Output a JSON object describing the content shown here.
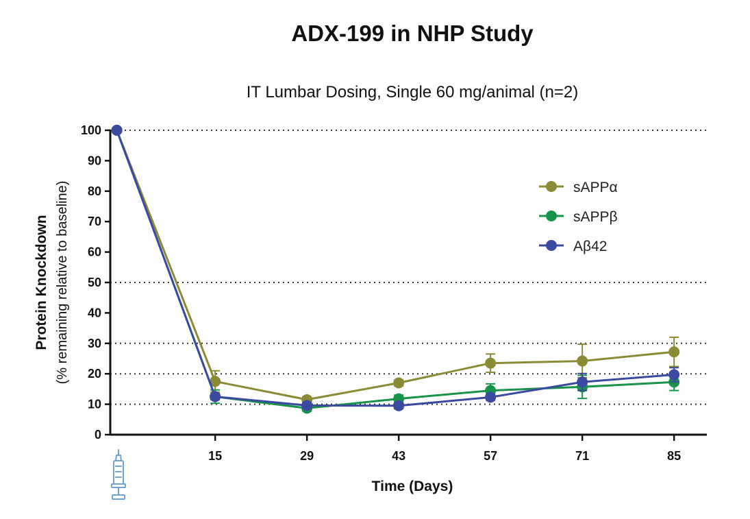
{
  "chart_data": {
    "type": "line",
    "title": "ADX-199 in NHP Study",
    "subtitle": "IT Lumbar Dosing, Single 60 mg/animal (n=2)",
    "xlabel": "Time (Days)",
    "ylabel": "Protein Knockdown",
    "ylabel_sub": "(% remaining relative to baseline)",
    "x": [
      0,
      15,
      29,
      43,
      57,
      71,
      85
    ],
    "x_tick_values": [
      15,
      29,
      43,
      57,
      71,
      85
    ],
    "x_tick_labels": [
      "15",
      "29",
      "43",
      "57",
      "71",
      "85"
    ],
    "y_ticks": [
      0,
      10,
      20,
      30,
      40,
      50,
      60,
      70,
      80,
      90,
      100
    ],
    "y_tick_labels": [
      "0",
      "10",
      "20",
      "30",
      "40",
      "50",
      "60",
      "70",
      "80",
      "90",
      "100"
    ],
    "xlim": [
      -1,
      90
    ],
    "ylim": [
      0,
      100
    ],
    "gridlines_y": [
      10,
      20,
      30,
      50,
      100
    ],
    "grid": "horizontal dotted at 10, 20, 30, 50, 100",
    "legend_position": "right",
    "dose_marker_icon": "syringe-icon",
    "series": [
      {
        "name": "sAPPα",
        "color": "#8b8b36",
        "values": [
          100,
          17.5,
          11.5,
          17,
          23.5,
          24.2,
          27.2
        ],
        "err": [
          0,
          3.5,
          1,
          1,
          3,
          5.5,
          4.8
        ]
      },
      {
        "name": "sAPPβ",
        "color": "#17944a",
        "values": [
          100,
          12.5,
          8.7,
          11.8,
          14.5,
          15.7,
          17.3
        ],
        "err": [
          0,
          2.2,
          1,
          1.2,
          2.2,
          3.8,
          2.8
        ]
      },
      {
        "name": "Aβ42",
        "color": "#3a4aa0",
        "values": [
          100,
          12.5,
          9.6,
          9.5,
          12.3,
          17.3,
          19.7
        ],
        "err": [
          0,
          1,
          1,
          1,
          1,
          2.8,
          2.3
        ]
      }
    ]
  }
}
